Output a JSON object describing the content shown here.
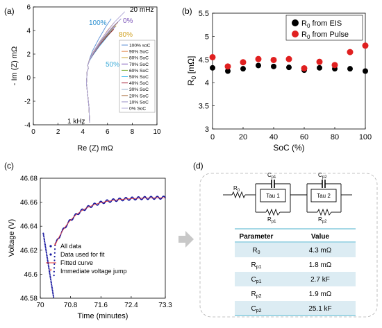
{
  "chart_data": [
    {
      "panel": "(a)",
      "type": "line",
      "xlabel": "Re (Z) mΩ",
      "ylabel": "- Im (Z) mΩ",
      "xlim": [
        0,
        10
      ],
      "ylim": [
        -4,
        6
      ],
      "xticks": [
        "0",
        "2",
        "4",
        "6",
        "8",
        "10"
      ],
      "yticks": [
        "-4",
        "-2",
        "0",
        "2",
        "4",
        "6"
      ],
      "annotations": {
        "top": "20 mHz",
        "bottom": "1 kHz",
        "p100": "100%",
        "p0": "0%",
        "p80": "80%",
        "p50": "50%"
      },
      "annotation_colors": {
        "p100": "#2a8fd0",
        "p0": "#7b55b8",
        "p80": "#d0a020",
        "p50": "#3aaad8"
      },
      "legend": [
        "100% soC",
        "90% SoC",
        "80% SoC",
        "70% SoC",
        "60% SoC",
        "50% SoC",
        "40% SoC",
        "30% SoC",
        "20% SoC",
        "10% SoC",
        "0% SoC"
      ],
      "series": [
        {
          "name": "100% soC",
          "color": "#5b8fd6",
          "x": [
            4.55,
            4.5,
            4.3,
            4.35,
            4.45,
            4.4,
            4.55,
            4.8,
            5.3,
            5.85,
            6.3
          ],
          "y": [
            -3.8,
            -2.5,
            -0.5,
            0.5,
            0.8,
            1.05,
            1.6,
            2.3,
            3.3,
            4.3,
            5.0
          ]
        },
        {
          "name": "90% SoC",
          "color": "#e07b3a",
          "x": [
            4.55,
            4.5,
            4.3,
            4.35,
            4.45,
            4.4,
            4.55,
            4.85,
            5.4,
            6.0,
            6.55
          ],
          "y": [
            -3.8,
            -2.5,
            -0.5,
            0.5,
            0.8,
            1.05,
            1.55,
            2.2,
            3.1,
            4.0,
            4.7
          ]
        },
        {
          "name": "80% SoC",
          "color": "#c9a227",
          "x": [
            4.55,
            4.5,
            4.3,
            4.35,
            4.45,
            4.4,
            4.55,
            4.85,
            5.45,
            6.1,
            6.7
          ],
          "y": [
            -3.8,
            -2.5,
            -0.5,
            0.5,
            0.8,
            1.05,
            1.5,
            2.1,
            3.0,
            3.8,
            4.4
          ]
        },
        {
          "name": "70% SoC",
          "color": "#7b55b8",
          "x": [
            4.55,
            4.5,
            4.3,
            4.35,
            4.45,
            4.4,
            4.55,
            4.85,
            5.4,
            6.05,
            6.6
          ],
          "y": [
            -3.8,
            -2.5,
            -0.5,
            0.5,
            0.8,
            1.05,
            1.5,
            2.05,
            2.85,
            3.7,
            4.3
          ]
        },
        {
          "name": "60% SoC",
          "color": "#77ac30",
          "x": [
            4.55,
            4.5,
            4.3,
            4.35,
            4.45,
            4.4,
            4.55,
            4.85,
            5.35,
            5.95,
            6.45
          ],
          "y": [
            -3.8,
            -2.5,
            -0.5,
            0.5,
            0.8,
            1.05,
            1.5,
            2.0,
            2.8,
            3.55,
            4.1
          ]
        },
        {
          "name": "50% SoC",
          "color": "#4dbeee",
          "x": [
            4.55,
            4.5,
            4.3,
            4.35,
            4.45,
            4.4,
            4.55,
            4.85,
            5.3,
            5.85,
            6.3
          ],
          "y": [
            -3.8,
            -2.5,
            -0.5,
            0.5,
            0.8,
            1.05,
            1.45,
            1.95,
            2.6,
            3.3,
            3.9
          ]
        },
        {
          "name": "40% SoC",
          "color": "#a2142f",
          "x": [
            4.55,
            4.5,
            4.3,
            4.35,
            4.45,
            4.4,
            4.55,
            4.85,
            5.35,
            5.95,
            6.5
          ],
          "y": [
            -3.8,
            -2.5,
            -0.5,
            0.5,
            0.8,
            1.05,
            1.5,
            2.0,
            2.75,
            3.5,
            4.1
          ]
        },
        {
          "name": "30% SoC",
          "color": "#8fa8c8",
          "x": [
            4.55,
            4.5,
            4.3,
            4.35,
            4.45,
            4.4,
            4.55,
            4.85,
            5.4,
            6.05,
            6.65
          ],
          "y": [
            -3.8,
            -2.5,
            -0.5,
            0.5,
            0.8,
            1.05,
            1.5,
            2.05,
            2.9,
            3.75,
            4.4
          ]
        },
        {
          "name": "20% SoC",
          "color": "#b07a50",
          "x": [
            4.55,
            4.5,
            4.3,
            4.35,
            4.45,
            4.4,
            4.55,
            4.9,
            5.5,
            6.2,
            6.85
          ],
          "y": [
            -3.8,
            -2.5,
            -0.5,
            0.5,
            0.8,
            1.05,
            1.55,
            2.2,
            3.1,
            4.0,
            4.7
          ]
        },
        {
          "name": "10% SoC",
          "color": "#9a8fc8",
          "x": [
            4.55,
            4.5,
            4.3,
            4.35,
            4.45,
            4.4,
            4.6,
            4.95,
            5.6,
            6.4,
            7.1
          ],
          "y": [
            -3.8,
            -2.5,
            -0.5,
            0.5,
            0.8,
            1.05,
            1.6,
            2.3,
            3.3,
            4.3,
            5.0
          ]
        },
        {
          "name": "0% SoC",
          "color": "#b0a8d8",
          "x": [
            4.55,
            4.5,
            4.3,
            4.35,
            4.45,
            4.4,
            4.6,
            5.0,
            5.7,
            6.55,
            7.4
          ],
          "y": [
            -3.8,
            -2.5,
            -0.5,
            0.5,
            0.8,
            1.05,
            1.65,
            2.45,
            3.55,
            4.7,
            5.6
          ]
        }
      ]
    },
    {
      "panel": "(b)",
      "type": "scatter",
      "xlabel": "SoC (%)",
      "ylabel": "R0 [mΩ]",
      "ylabel_main": "R",
      "ylabel_sub": "0",
      "ylabel_unit": " [mΩ]",
      "xlim": [
        0,
        100
      ],
      "ylim": [
        3,
        5.5
      ],
      "xticks": [
        "0",
        "20",
        "40",
        "60",
        "80",
        "100"
      ],
      "yticks": [
        "3",
        "3.5",
        "4",
        "4.5",
        "5",
        "5.5"
      ],
      "series": [
        {
          "name": "R0 from EIS",
          "legend_main": "R",
          "legend_sub": "0",
          "legend_rest": " from EIS",
          "color": "#000000",
          "x": [
            0,
            10,
            20,
            30,
            40,
            50,
            60,
            70,
            80,
            90,
            100
          ],
          "y": [
            4.32,
            4.25,
            4.3,
            4.37,
            4.35,
            4.33,
            4.27,
            4.32,
            4.3,
            4.3,
            4.25
          ]
        },
        {
          "name": "R0 from Pulse",
          "legend_main": "R",
          "legend_sub": "0",
          "legend_rest": " from Pulse",
          "color": "#e02020",
          "x": [
            0,
            10,
            20,
            30,
            40,
            50,
            60,
            70,
            80,
            90,
            100
          ],
          "y": [
            4.55,
            4.35,
            4.44,
            4.51,
            4.49,
            4.51,
            4.31,
            4.45,
            4.38,
            4.66,
            4.8
          ]
        }
      ]
    },
    {
      "panel": "(c)",
      "type": "scatter",
      "xlabel": "Time (minutes)",
      "ylabel": "Voltage (V)",
      "xlim": [
        70,
        73.3
      ],
      "ylim": [
        46.58,
        46.68
      ],
      "xticks": [
        "70",
        "70.8",
        "71.6",
        "72.4",
        "73.3"
      ],
      "xtick_values": [
        70,
        70.8,
        71.6,
        72.4,
        73.3
      ],
      "yticks": [
        "46.58",
        "46.6",
        "46.62",
        "46.64",
        "46.66",
        "46.68"
      ],
      "legend": [
        {
          "name": "All data",
          "color": "#1a1aa0"
        },
        {
          "name": "Data used for fit",
          "color": "#1a1aa0"
        },
        {
          "name": "Fitted curve",
          "color": "#e03030"
        },
        {
          "name": "Immediate voltage jump",
          "color": "#e03030"
        }
      ],
      "drop": {
        "x": [
          70.08,
          70.35
        ],
        "y": [
          46.634,
          46.581
        ]
      },
      "jump": {
        "x": [
          70.36,
          70.39
        ],
        "y": [
          46.599,
          46.624
        ]
      },
      "recovery": {
        "t0": 70.39,
        "v0": 46.624,
        "vinf": 46.664,
        "tau": 0.55,
        "t1": 73.3
      }
    }
  ],
  "circuit": {
    "panel": "(d)",
    "labels": {
      "r0": "R0",
      "cp1": "Cp1",
      "cp2": "Cp2",
      "tau1": "Tau 1",
      "tau2": "Tau 2",
      "rp1": "Rp1",
      "rp2": "Rp2"
    },
    "table": {
      "headers": [
        "Parameter",
        "Value"
      ],
      "rows": [
        {
          "param": "R",
          "sub": "0",
          "value": "4.3 mΩ"
        },
        {
          "param": "R",
          "sub": "p1",
          "value": "1.8 mΩ"
        },
        {
          "param": "C",
          "sub": "p1",
          "value": "2.7 kF"
        },
        {
          "param": "R",
          "sub": "p2",
          "value": "1.9 mΩ"
        },
        {
          "param": "C",
          "sub": "p2",
          "value": "25.1 kF"
        }
      ]
    },
    "colors": {
      "row_fill": "#dcecf3",
      "rule": "#6fc1d8"
    }
  },
  "panel_labels": {
    "a": "(a)",
    "b": "(b)",
    "c": "(c)",
    "d": "(d)"
  }
}
